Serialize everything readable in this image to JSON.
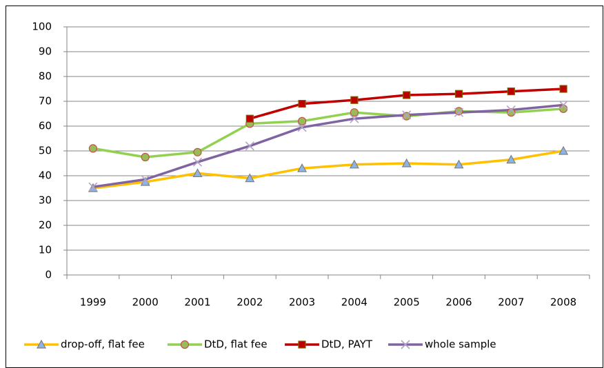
{
  "chart_data": {
    "type": "line",
    "categories": [
      "1999",
      "2000",
      "2001",
      "2002",
      "2003",
      "2004",
      "2005",
      "2006",
      "2007",
      "2008"
    ],
    "series": [
      {
        "name": "drop-off, flat fee",
        "color": "#ffc000",
        "marker": "triangle",
        "marker_fill": "#8eb4e3",
        "marker_stroke": "#7f7f7f",
        "values": [
          35,
          37.5,
          41,
          39,
          43,
          44.5,
          45,
          44.5,
          46.5,
          50
        ]
      },
      {
        "name": "DtD, flat fee",
        "color": "#92d050",
        "marker": "circle",
        "marker_fill": "#9bbb59",
        "marker_stroke": "#c0504d",
        "values": [
          51,
          47.5,
          49.5,
          61,
          62,
          65.5,
          64,
          66,
          65.5,
          67
        ]
      },
      {
        "name": "DtD, PAYT",
        "color": "#c00000",
        "marker": "square",
        "marker_fill": "#c00000",
        "marker_stroke": "#7f6000",
        "values": [
          null,
          null,
          null,
          63,
          69,
          70.5,
          72.5,
          73,
          74,
          75
        ]
      },
      {
        "name": "whole sample",
        "color": "#8064a2",
        "marker": "x",
        "marker_fill": "none",
        "marker_stroke": "#b3a2c7",
        "values": [
          35.5,
          38.5,
          45.5,
          52,
          59.5,
          63,
          64.5,
          65.5,
          66.5,
          68.5
        ]
      }
    ],
    "ylim": [
      0,
      100
    ],
    "yticks": [
      0,
      10,
      20,
      30,
      40,
      50,
      60,
      70,
      80,
      90,
      100
    ],
    "grid": true,
    "legend": "bottom"
  }
}
